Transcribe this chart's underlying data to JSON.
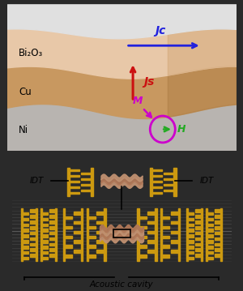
{
  "fig_width": 3.0,
  "fig_height": 3.59,
  "dpi": 100,
  "top_bg": "#e0e0e0",
  "bottom_bg": "#5bbfbf",
  "dark_border": "#2a2a2a",
  "bi2o3_color_light": "#e8c8a8",
  "bi2o3_color_dark": "#d4a878",
  "cu_color": "#c89860",
  "ni_color": "#b8b4b0",
  "ni_color_dark": "#a0a0a0",
  "bi2o3_label": "Bi₂O₃",
  "cu_label": "Cu",
  "ni_label": "Ni",
  "jc_label": "Jc",
  "js_label": "Js",
  "m_label": "M",
  "h_label": "H",
  "jc_color": "#2222dd",
  "js_color": "#cc1111",
  "m_color": "#cc00cc",
  "h_color": "#22aa22",
  "circle_color": "#cc00cc",
  "idt_color": "#cc9910",
  "sample_color": "#c09070",
  "idt_label": "IDT",
  "acoustic_label": "Acoustic cavity"
}
